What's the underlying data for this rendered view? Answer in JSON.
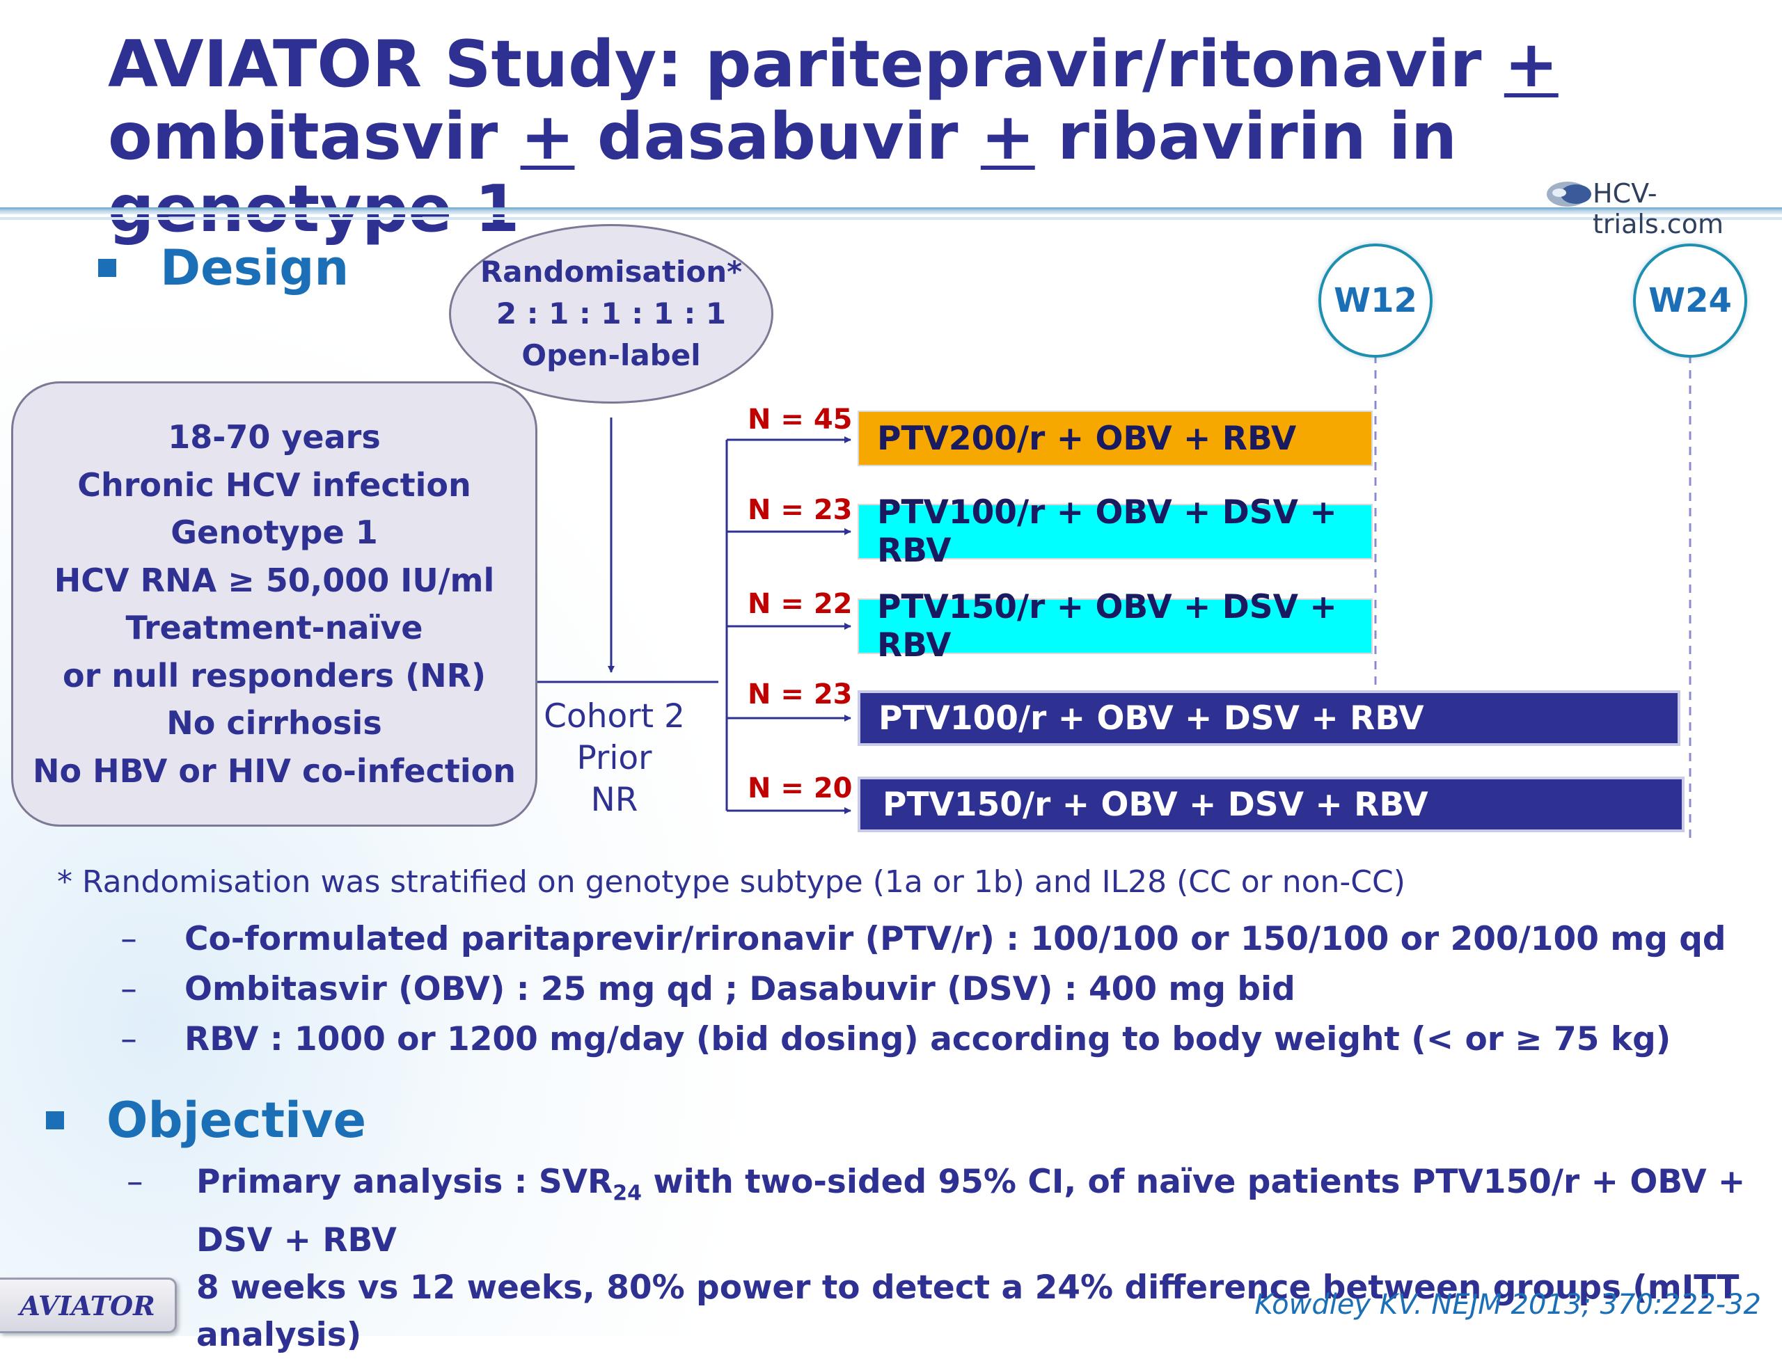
{
  "title": {
    "line1_main": "AVIATOR Study: paritepravir/ritonavir ",
    "line1_pm": "+",
    "line2_a": "ombitasvir ",
    "line2_pm1": "+",
    "line2_b": " dasabuvir ",
    "line2_pm2": "+",
    "line2_c": " ribavirin in genotype 1"
  },
  "logo": {
    "text": "HCV-trials.com"
  },
  "design": {
    "heading": "Design",
    "randomisation": [
      "Randomisation*",
      "2 : 1 : 1 : 1 : 1",
      "Open-label"
    ],
    "criteria": [
      "18-70 years",
      "Chronic HCV infection",
      "Genotype 1",
      "HCV RNA ≥ 50,000 IU/ml",
      "Treatment-naïve",
      "or null responders (NR)",
      "No cirrhosis",
      "No HBV or HIV co-infection"
    ],
    "cohort": [
      "Cohort 2",
      "Prior",
      "NR"
    ],
    "timepoints": [
      "W12",
      "W24"
    ],
    "arms": [
      {
        "n": "N = 45",
        "label": "PTV200/r + OBV + RBV",
        "color": "#f6a800",
        "text_color": "#1a1a60"
      },
      {
        "n": "N = 23",
        "label": "PTV100/r + OBV + DSV + RBV",
        "color": "#00ffff",
        "text_color": "#1a1a60"
      },
      {
        "n": "N = 22",
        "label": "PTV150/r + OBV + DSV + RBV",
        "color": "#00ffff",
        "text_color": "#1a1a60"
      },
      {
        "n": "N = 23",
        "label": "PTV100/r + OBV + DSV + RBV",
        "color": "#2e3192",
        "text_color": "#ffffff"
      },
      {
        "n": "N = 20",
        "label": "PTV150/r + OBV + DSV + RBV",
        "color": "#2e3192",
        "text_color": "#ffffff"
      }
    ],
    "footnote": "* Randomisation was stratified on genotype subtype (1a or 1b) and IL28 (CC or non-CC)",
    "dash": "–",
    "sub_points": [
      "Co-formulated paritaprevir/rironavir (PTV/r) : 100/100 or 150/100 or 200/100 mg qd",
      "Ombitasvir (OBV) : 25 mg qd ; Dasabuvir (DSV) : 400 mg bid",
      "RBV : 1000 or 1200 mg/day (bid dosing) according to body weight (< or ≥ 75 kg)"
    ]
  },
  "objective": {
    "heading": "Objective",
    "line1_a": "Primary analysis : SVR",
    "line1_sub": "24",
    "line1_b": " with two-sided 95% CI, of naïve patients PTV150/r + OBV +  DSV + RBV",
    "line2": "8 weeks vs 12 weeks, 80% power to detect a 24% difference between groups (mITT analysis)"
  },
  "footer": {
    "badge": "AVIATOR",
    "reference": "Kowdley KV. NEJM 2013; 370:222-32"
  }
}
